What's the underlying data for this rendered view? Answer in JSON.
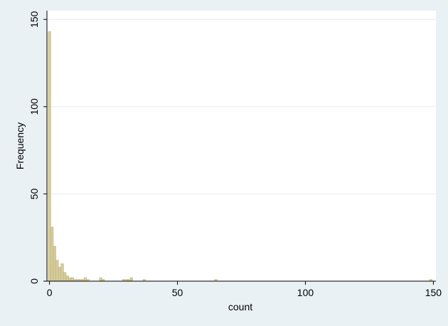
{
  "chart_data": {
    "type": "bar",
    "title": "",
    "xlabel": "count",
    "ylabel": "Frequency",
    "xlim": [
      -1,
      151
    ],
    "ylim": [
      0,
      155
    ],
    "xticks": [
      0,
      50,
      100,
      150
    ],
    "yticks": [
      0,
      50,
      100,
      150
    ],
    "grid": true,
    "legend": "none",
    "bar_width": 1,
    "colors": {
      "bar_fill": "#d6cc9a",
      "bar_stroke": "#b9ad72",
      "plot_bg": "#ffffff",
      "page_bg": "#eaf1f5",
      "grid": "#e6ecef"
    },
    "x": [
      0,
      1,
      2,
      3,
      4,
      5,
      6,
      7,
      8,
      9,
      10,
      11,
      12,
      13,
      14,
      15,
      20,
      21,
      29,
      30,
      31,
      32,
      37,
      65,
      149
    ],
    "values": [
      143,
      31,
      20,
      12,
      8,
      10,
      5,
      3,
      2,
      2,
      1,
      1,
      1,
      1,
      2,
      1,
      2,
      1,
      1,
      1,
      1,
      2,
      1,
      1,
      1
    ]
  }
}
